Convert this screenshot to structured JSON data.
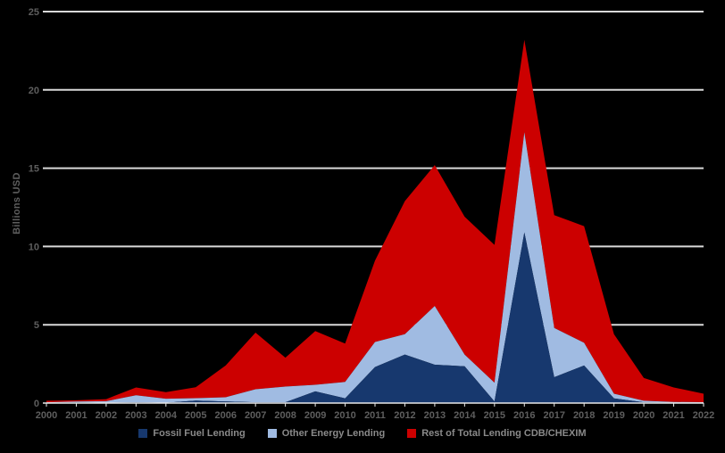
{
  "colors": {
    "background": "#000000",
    "gridline": "#D9D9D9",
    "axis_line": "#E8E8E8",
    "axis_label": "#5E5E5E",
    "legend_text": "#8A8A8A"
  },
  "chart_data": {
    "type": "area",
    "stacked": true,
    "title": "",
    "ylabel": "Billions USD",
    "xlabel": "",
    "ylim": [
      0,
      25
    ],
    "yticks": [
      0,
      5,
      10,
      15,
      20,
      25
    ],
    "grid": true,
    "legend_position": "bottom",
    "categories": [
      "2000",
      "2001",
      "2002",
      "2003",
      "2004",
      "2005",
      "2006",
      "2007",
      "2008",
      "2009",
      "2010",
      "2011",
      "2012",
      "2013",
      "2014",
      "2015",
      "2016",
      "2017",
      "2018",
      "2019",
      "2020",
      "2021",
      "2022"
    ],
    "series": [
      {
        "name": "Fossil Fuel Lending",
        "color": "#17386E",
        "values": [
          0.02,
          0.05,
          0.02,
          0.05,
          0.02,
          0.16,
          0.1,
          0.05,
          0.05,
          0.75,
          0.3,
          2.3,
          3.1,
          2.45,
          2.35,
          0.1,
          10.9,
          1.65,
          2.4,
          0.3,
          0.05,
          0.02,
          0.02
        ]
      },
      {
        "name": "Other Energy Lending",
        "color": "#A0BBE2",
        "values": [
          0.03,
          0.05,
          0.1,
          0.45,
          0.26,
          0.15,
          0.27,
          0.83,
          1.0,
          0.42,
          1.05,
          1.6,
          1.3,
          3.75,
          0.75,
          1.2,
          6.4,
          3.15,
          1.45,
          0.3,
          0.1,
          0.05,
          0.04
        ]
      },
      {
        "name": "Rest of Total Lending CDB/CHEXIM",
        "color": "#CC0000",
        "values": [
          0.1,
          0.08,
          0.13,
          0.5,
          0.42,
          0.7,
          2.03,
          3.62,
          1.85,
          3.43,
          2.45,
          5.2,
          8.5,
          9.0,
          8.8,
          8.8,
          5.9,
          7.2,
          7.45,
          3.8,
          1.45,
          0.93,
          0.54
        ]
      }
    ]
  }
}
